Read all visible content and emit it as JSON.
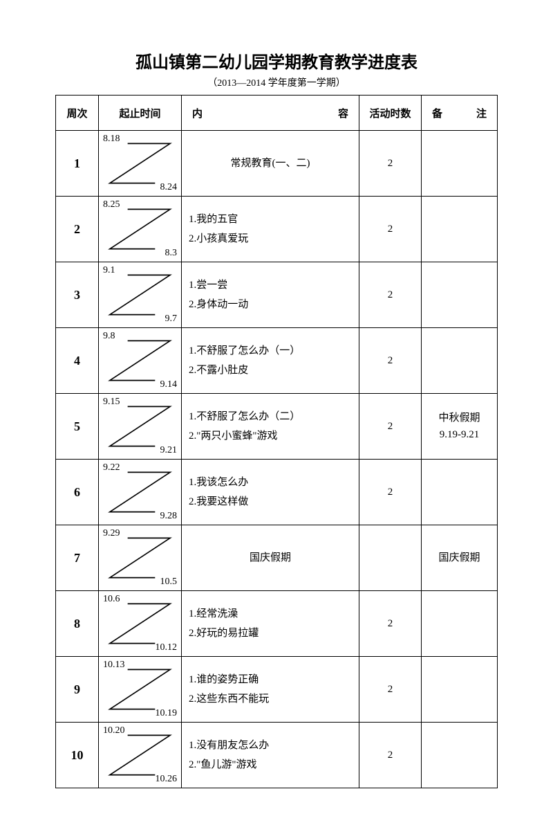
{
  "title": "孤山镇第二幼儿园学期教育教学进度表",
  "subtitle": "（2013—2014 学年度第一学期）",
  "headers": {
    "week": "周次",
    "date": "起止时间",
    "content_a": "内",
    "content_b": "容",
    "hours": "活动时数",
    "note_a": "备",
    "note_b": "注"
  },
  "rows": [
    {
      "week": "1",
      "start": "8.18",
      "end": "8.24",
      "content": [
        "常规教育(一、二)"
      ],
      "single": true,
      "hours": "2",
      "note": ""
    },
    {
      "week": "2",
      "start": "8.25",
      "end": "8.3",
      "content": [
        "1.我的五官",
        "2.小孩真爱玩"
      ],
      "single": false,
      "hours": "2",
      "note": ""
    },
    {
      "week": "3",
      "start": "9.1",
      "end": "9.7",
      "content": [
        "1.尝一尝",
        "2.身体动一动"
      ],
      "single": false,
      "hours": "2",
      "note": ""
    },
    {
      "week": "4",
      "start": "9.8",
      "end": "9.14",
      "content": [
        "1.不舒服了怎么办（一）",
        "2.不露小肚皮"
      ],
      "single": false,
      "hours": "2",
      "note": ""
    },
    {
      "week": "5",
      "start": "9.15",
      "end": "9.21",
      "content": [
        "1.不舒服了怎么办（二）",
        "2.\"两只小蜜蜂\"游戏"
      ],
      "single": false,
      "hours": "2",
      "note": "中秋假期\n9.19-9.21"
    },
    {
      "week": "6",
      "start": "9.22",
      "end": "9.28",
      "content": [
        "1.我该怎么办",
        "2.我要这样做"
      ],
      "single": false,
      "hours": "2",
      "note": ""
    },
    {
      "week": "7",
      "start": "9.29",
      "end": "10.5",
      "content": [
        "国庆假期"
      ],
      "single": true,
      "hours": "",
      "note": "国庆假期"
    },
    {
      "week": "8",
      "start": "10.6",
      "end": "10.12",
      "content": [
        "1.经常洗澡",
        "2.好玩的易拉罐"
      ],
      "single": false,
      "hours": "2",
      "note": ""
    },
    {
      "week": "9",
      "start": "10.13",
      "end": "10.19",
      "content": [
        "1.谁的姿势正确",
        "2.这些东西不能玩"
      ],
      "single": false,
      "hours": "2",
      "note": ""
    },
    {
      "week": "10",
      "start": "10.20",
      "end": "10.26",
      "content": [
        "1.没有朋友怎么办",
        "2.\"鱼儿游\"游戏"
      ],
      "single": false,
      "hours": "2",
      "note": ""
    }
  ]
}
